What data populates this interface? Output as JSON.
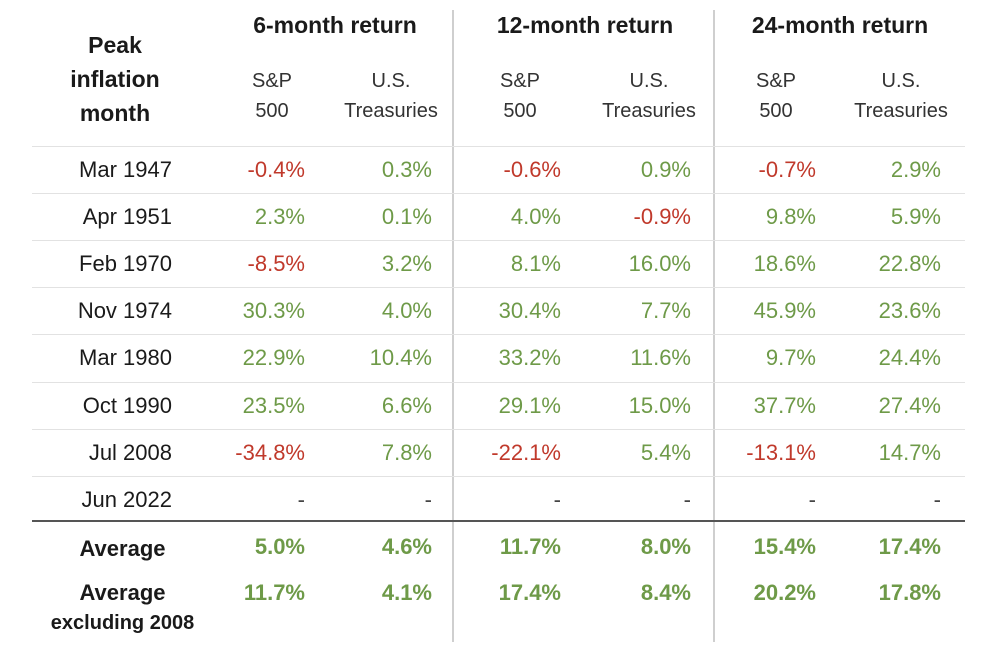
{
  "header": {
    "peak_lines": [
      "Peak",
      "inflation",
      "month"
    ],
    "groups": [
      "6-month return",
      "12-month return",
      "24-month return"
    ],
    "sub_sp": [
      "S&P",
      "500"
    ],
    "sub_tr": [
      "U.S.",
      "Treasuries"
    ]
  },
  "rows": [
    {
      "month": "Mar 1947",
      "values": [
        "-0.4%",
        "0.3%",
        "-0.6%",
        "0.9%",
        "-0.7%",
        "2.9%"
      ]
    },
    {
      "month": "Apr 1951",
      "values": [
        "2.3%",
        "0.1%",
        "4.0%",
        "-0.9%",
        "9.8%",
        "5.9%"
      ]
    },
    {
      "month": "Feb 1970",
      "values": [
        "-8.5%",
        "3.2%",
        "8.1%",
        "16.0%",
        "18.6%",
        "22.8%"
      ]
    },
    {
      "month": "Nov 1974",
      "values": [
        "30.3%",
        "4.0%",
        "30.4%",
        "7.7%",
        "45.9%",
        "23.6%"
      ]
    },
    {
      "month": "Mar 1980",
      "values": [
        "22.9%",
        "10.4%",
        "33.2%",
        "11.6%",
        "9.7%",
        "24.4%"
      ]
    },
    {
      "month": "Oct 1990",
      "values": [
        "23.5%",
        "6.6%",
        "29.1%",
        "15.0%",
        "37.7%",
        "27.4%"
      ]
    },
    {
      "month": "Jul 2008",
      "values": [
        "-34.8%",
        "7.8%",
        "-22.1%",
        "5.4%",
        "-13.1%",
        "14.7%"
      ]
    },
    {
      "month": "Jun 2022",
      "values": [
        "-",
        "-",
        "-",
        "-",
        "-",
        "-"
      ]
    }
  ],
  "averages": [
    {
      "label_lines": [
        "Average"
      ],
      "values": [
        "5.0%",
        "4.6%",
        "11.7%",
        "8.0%",
        "15.4%",
        "17.4%"
      ]
    },
    {
      "label_lines": [
        "Average",
        "excluding 2008"
      ],
      "values": [
        "11.7%",
        "4.1%",
        "17.4%",
        "8.4%",
        "20.2%",
        "17.8%"
      ]
    }
  ],
  "colors": {
    "positive": "#6e9a48",
    "negative": "#c0392b",
    "text": "#1a1a1a"
  }
}
